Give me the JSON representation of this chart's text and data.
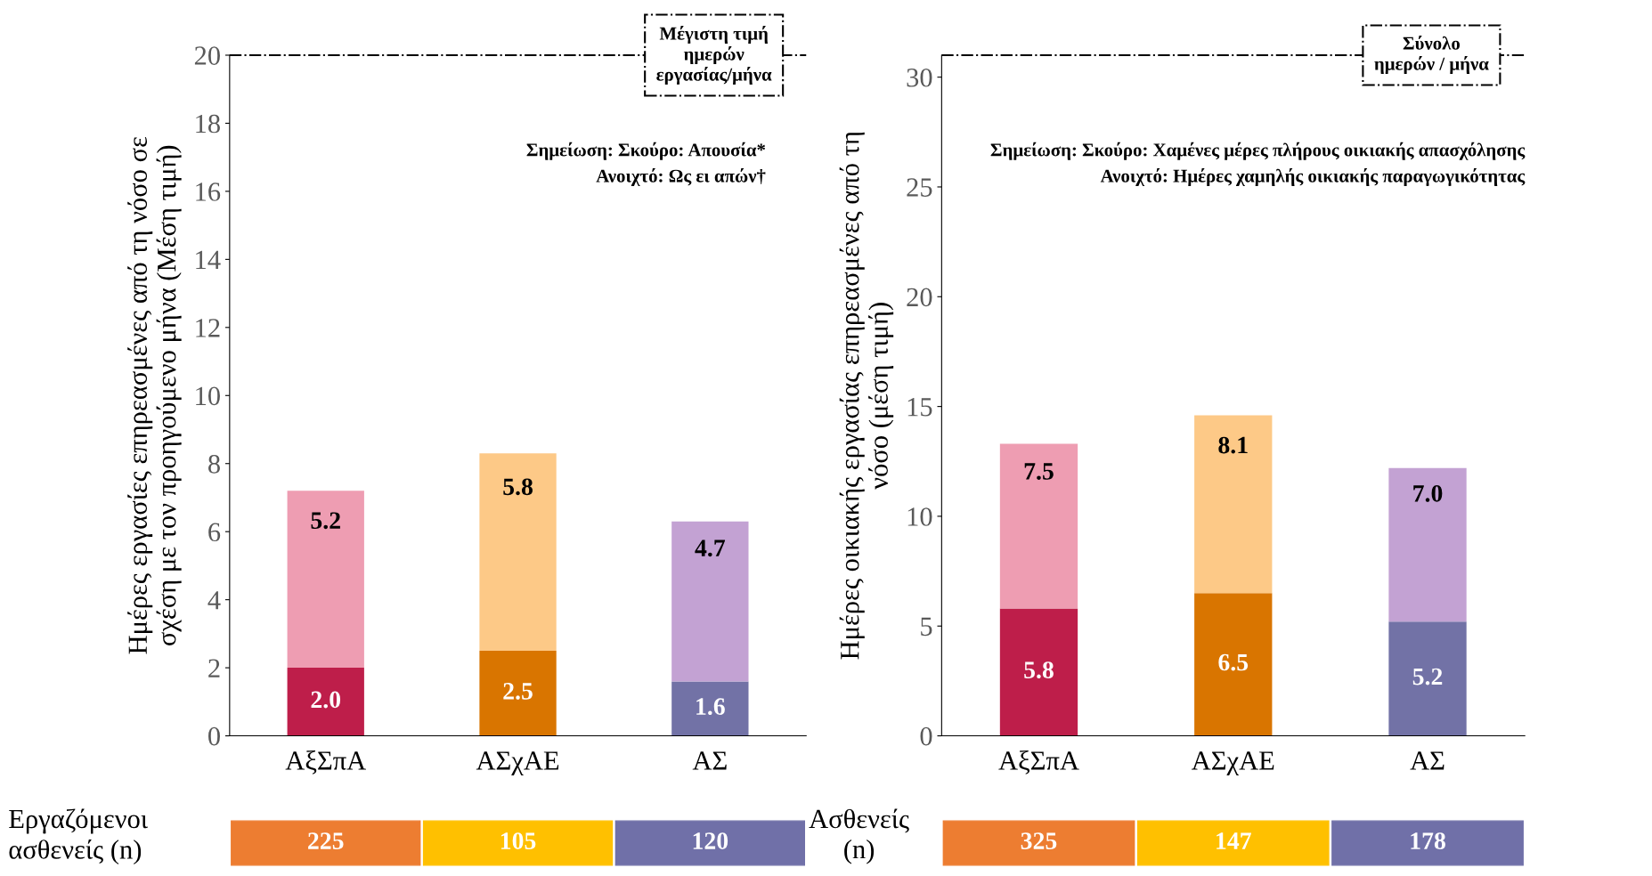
{
  "chart_data": [
    {
      "type": "bar",
      "stacked": true,
      "ylabel": "Ημέρες εργασίες επηρεασμένες από τη νόσο σε\nσχέση με τον προηγούμενο μήνα (Μέση τιμή)",
      "categories": [
        "ΑξΣπΑ",
        "ΑΣχΑΕ",
        "ΑΣ"
      ],
      "ylim": [
        0,
        20
      ],
      "yticks": [
        0,
        2,
        4,
        6,
        8,
        10,
        12,
        14,
        16,
        18,
        20
      ],
      "legend": false,
      "grid": false,
      "series": [
        {
          "colors": [
            "#be1e4a",
            "#d97500",
            "#7272a6"
          ],
          "values": [
            2.0,
            2.5,
            1.6
          ],
          "value_labels": [
            "2.0",
            "2.5",
            "1.6"
          ]
        },
        {
          "colors": [
            "#ee9db2",
            "#fdc987",
            "#c3a2d3"
          ],
          "values": [
            5.2,
            5.8,
            4.7
          ],
          "value_labels": [
            "5.2",
            "5.8",
            "4.7"
          ]
        }
      ],
      "ref_lines": [
        {
          "axis": "y",
          "value": 20,
          "label": "Μέγιστη τιμή\nημερών\nεργασίας/μήνα",
          "line_style": "dashdot",
          "color": "#000000"
        }
      ],
      "annotations": [
        "Σημείωση: Σκούρο: Απουσία*\nΑνοιχτό: Ως ει απών†",
        "Εργαζόμενοι\nασθενείς (n)",
        "225",
        "105",
        "120"
      ]
    },
    {
      "type": "bar",
      "stacked": true,
      "ylabel": "Ημέρες οικιακής εργασίας επηρεασμένες από τη\nνόσο (μέση τιμή)",
      "categories": [
        "ΑξΣπΑ",
        "ΑΣχΑΕ",
        "ΑΣ"
      ],
      "ylim": [
        0,
        31
      ],
      "yticks": [
        0,
        5,
        10,
        15,
        20,
        25,
        30
      ],
      "legend": false,
      "grid": false,
      "series": [
        {
          "colors": [
            "#be1e4a",
            "#d97500",
            "#7272a6"
          ],
          "values": [
            5.8,
            6.5,
            5.2
          ],
          "value_labels": [
            "5.8",
            "6.5",
            "5.2"
          ]
        },
        {
          "colors": [
            "#ee9db2",
            "#fdc987",
            "#c3a2d3"
          ],
          "values": [
            7.5,
            8.1,
            7.0
          ],
          "value_labels": [
            "7.5",
            "8.1",
            "7.0"
          ]
        }
      ],
      "ref_lines": [
        {
          "axis": "y",
          "value": 31,
          "label": "Σύνολο\nημερών / μήνα",
          "line_style": "dashdot",
          "color": "#000000"
        }
      ],
      "annotations": [
        "Σημείωση: Σκούρο: Χαμένες μέρες πλήρους οικιακής απασχόλησης\nΑνοιχτό: Ημέρες χαμηλής οικιακής παραγωγικότητας",
        "Ασθενείς\n(n)",
        "325",
        "147",
        "178"
      ]
    }
  ]
}
